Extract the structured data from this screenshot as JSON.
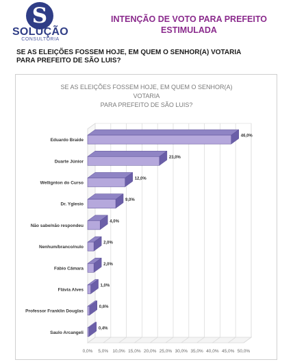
{
  "header": {
    "logo_name": "SOLUÇÃO",
    "logo_sub": "CONSULTORIA",
    "title_line1": "INTENÇÃO DE VOTO PARA PREFEITO",
    "title_line2": "ESTIMULADA"
  },
  "question": {
    "line1": "SE AS ELEIÇÕES FOSSEM HOJE, EM QUEM O SENHOR(A) VOTARIA",
    "line2": "PARA PREFEITO DE SÃO LUIS?"
  },
  "colors": {
    "bar_front": "#b5a8dc",
    "bar_side": "#6b5fa8",
    "bar_top": "#8f84c4",
    "title": "#8a2a8c",
    "brand": "#2f3d86"
  },
  "chart_data": {
    "type": "bar",
    "orientation": "horizontal",
    "title_lines": [
      "SE AS ELEIÇÕES FOSSEM HOJE, EM QUEM O SENHOR(A)",
      "VOTARIA",
      "PARA PREFEITO DE SÃO LUIS?"
    ],
    "categories": [
      "Eduardo Braide",
      "Duarte Júnior",
      "Wellignton do Curso",
      "Dr. Yglesio",
      "Não sabe/não respondeu",
      "Nenhum/branco/nulo",
      "Fábio Câmara",
      "Flávia Alves",
      "Professor Franklin Douglas",
      "Saulo Arcangeli"
    ],
    "values": [
      46.0,
      23.0,
      12.0,
      9.0,
      4.0,
      2.0,
      2.0,
      1.0,
      0.6,
      0.4
    ],
    "data_labels": [
      "46,0%",
      "23,0%",
      "12,0%",
      "9,0%",
      "4,0%",
      "2,0%",
      "2,0%",
      "1,0%",
      "0,6%",
      "0,4%"
    ],
    "x_ticks": [
      0,
      5,
      10,
      15,
      20,
      25,
      30,
      35,
      40,
      45,
      50
    ],
    "x_tick_labels": [
      "0,0%",
      "5,0%",
      "10,0%",
      "15,0%",
      "20,0%",
      "25,0%",
      "30,0%",
      "35,0%",
      "40,0%",
      "45,0%",
      "50,0%"
    ],
    "xlim": [
      0,
      50
    ],
    "grid": true,
    "legend": "none",
    "style": "3d"
  }
}
